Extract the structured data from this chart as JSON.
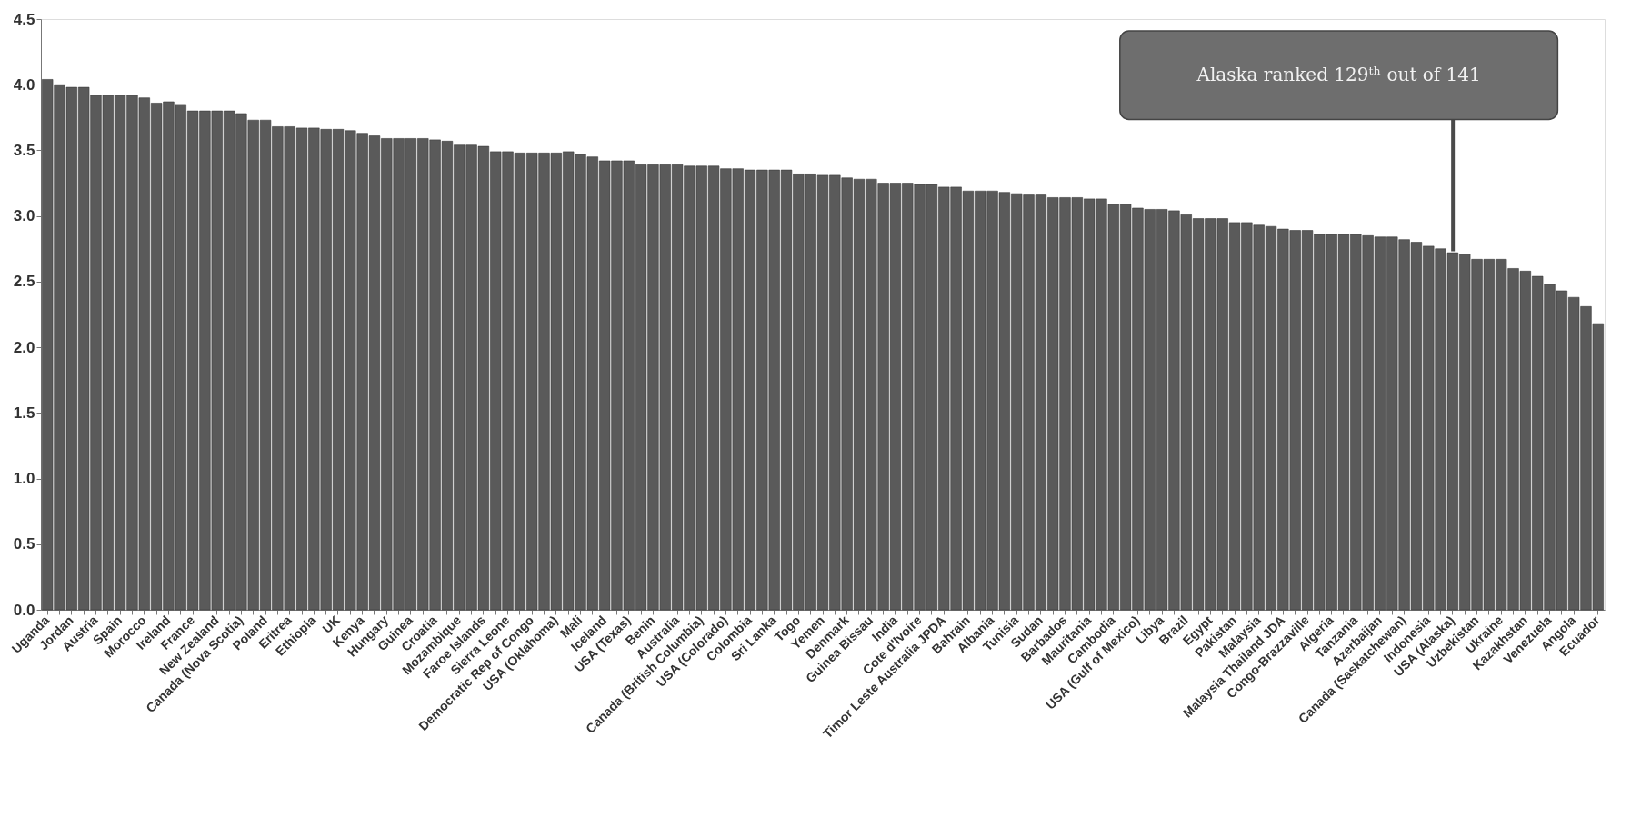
{
  "chart_data": {
    "type": "bar",
    "categories": [
      "Uganda",
      null,
      "Jordan",
      null,
      "Austria",
      null,
      "Spain",
      null,
      "Morocco",
      null,
      "Ireland",
      null,
      "France",
      null,
      "New Zealand",
      null,
      "Canada (Nova Scotia)",
      null,
      "Poland",
      null,
      "Eritrea",
      null,
      "Ethiopia",
      null,
      "UK",
      null,
      "Kenya",
      null,
      "Hungary",
      null,
      "Guinea",
      null,
      "Croatia",
      null,
      "Mozambique",
      null,
      "Faroe Islands",
      null,
      "Sierra Leone",
      null,
      "Democratic Rep of Congo",
      null,
      "USA (Oklahoma)",
      null,
      "Mali",
      null,
      "Iceland",
      null,
      "USA (Texas)",
      null,
      "Benin",
      null,
      "Australia",
      null,
      "Canada (British Columbia)",
      null,
      "USA (Colorado)",
      null,
      "Colombia",
      null,
      "Sri Lanka",
      null,
      "Togo",
      null,
      "Yemen",
      null,
      "Denmark",
      null,
      "Guinea Bissau",
      null,
      "India",
      null,
      "Cote d'Ivoire",
      null,
      "Timor Leste Australia JPDA",
      null,
      "Bahrain",
      null,
      "Albania",
      null,
      "Tunisia",
      null,
      "Sudan",
      null,
      "Barbados",
      null,
      "Mauritania",
      null,
      "Cambodia",
      null,
      "USA (Gulf of Mexico)",
      null,
      "Libya",
      null,
      "Brazil",
      null,
      "Egypt",
      null,
      "Pakistan",
      null,
      "Malaysia",
      null,
      "Malaysia Thailand JDA",
      null,
      "Congo-Brazzaville",
      null,
      "Algeria",
      null,
      "Tanzania",
      null,
      "Azerbaijan",
      null,
      "Canada (Saskatchewan)",
      null,
      "Indonesia",
      null,
      "USA (Alaska)",
      null,
      "Uzbekistan",
      null,
      "Ukraine",
      null,
      "Kazakhstan",
      null,
      "Venezuela",
      null,
      "Angola",
      null,
      "Ecuador"
    ],
    "values": [
      4.04,
      4.0,
      3.98,
      3.98,
      3.92,
      3.92,
      3.92,
      3.92,
      3.9,
      3.86,
      3.87,
      3.85,
      3.8,
      3.8,
      3.8,
      3.8,
      3.78,
      3.73,
      3.73,
      3.68,
      3.68,
      3.67,
      3.67,
      3.66,
      3.66,
      3.65,
      3.63,
      3.61,
      3.59,
      3.59,
      3.59,
      3.59,
      3.58,
      3.57,
      3.54,
      3.54,
      3.53,
      3.49,
      3.49,
      3.48,
      3.48,
      3.48,
      3.48,
      3.49,
      3.47,
      3.45,
      3.42,
      3.42,
      3.42,
      3.39,
      3.39,
      3.39,
      3.39,
      3.38,
      3.38,
      3.38,
      3.36,
      3.36,
      3.35,
      3.35,
      3.35,
      3.35,
      3.32,
      3.32,
      3.31,
      3.31,
      3.29,
      3.28,
      3.28,
      3.25,
      3.25,
      3.25,
      3.24,
      3.24,
      3.22,
      3.22,
      3.19,
      3.19,
      3.19,
      3.18,
      3.17,
      3.16,
      3.16,
      3.14,
      3.14,
      3.14,
      3.13,
      3.13,
      3.09,
      3.09,
      3.06,
      3.05,
      3.05,
      3.04,
      3.01,
      2.98,
      2.98,
      2.98,
      2.95,
      2.95,
      2.93,
      2.92,
      2.9,
      2.89,
      2.89,
      2.86,
      2.86,
      2.86,
      2.86,
      2.85,
      2.84,
      2.84,
      2.82,
      2.8,
      2.77,
      2.75,
      2.72,
      2.71,
      2.67,
      2.67,
      2.67,
      2.6,
      2.58,
      2.54,
      2.48,
      2.43,
      2.38,
      2.31,
      2.18
    ],
    "color": "#5a5a5a",
    "ylim": [
      0,
      4.5
    ],
    "yticks": [
      {
        "value": 0,
        "label": "0.0"
      },
      {
        "value": 0.5,
        "label": "0.5"
      },
      {
        "value": 1,
        "label": "1.0"
      },
      {
        "value": 1.5,
        "label": "1.5"
      },
      {
        "value": 2,
        "label": "2.0"
      },
      {
        "value": 2.5,
        "label": "2.5"
      },
      {
        "value": 3,
        "label": "3.0"
      },
      {
        "value": 3.5,
        "label": "3.5"
      },
      {
        "value": 4,
        "label": "4.0"
      },
      {
        "value": 4.5,
        "label": "4.5"
      }
    ],
    "annotations": [
      "Alaska ranked 129ᵗʰ out of 141"
    ]
  }
}
